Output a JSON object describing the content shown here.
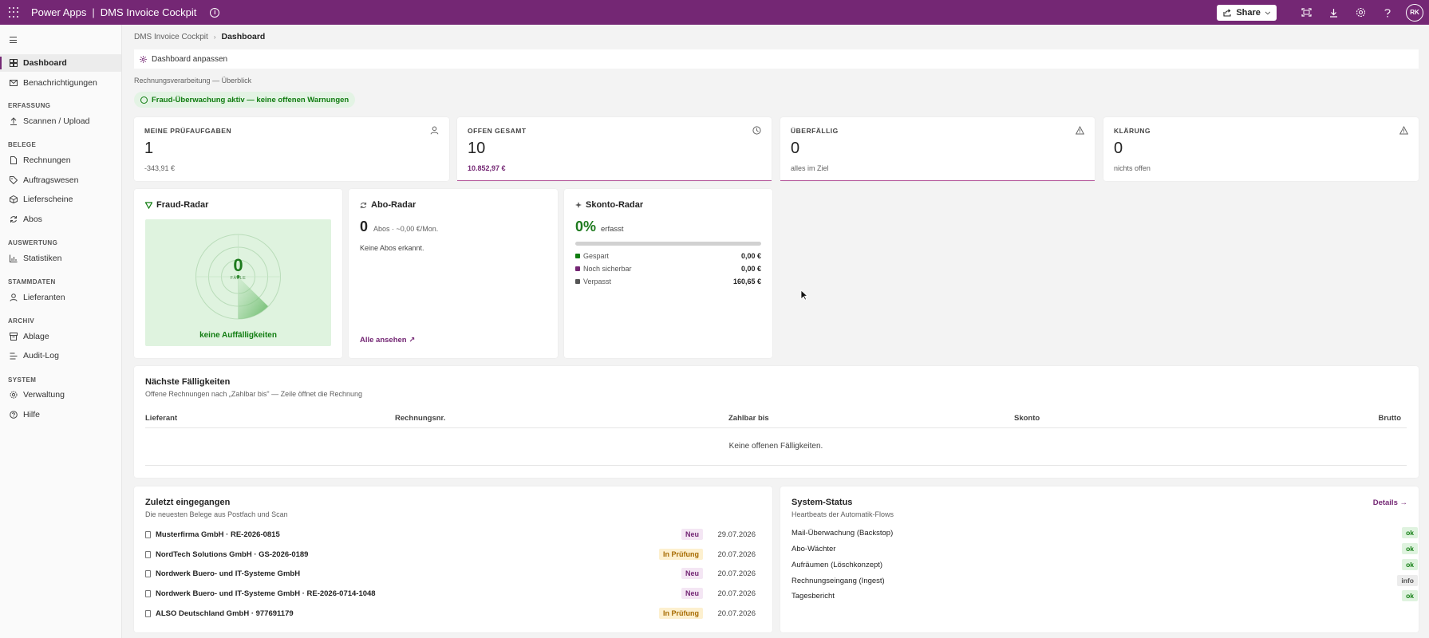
{
  "topbar": {
    "brand": "Power Apps",
    "separator": "|",
    "app_name": "DMS Invoice Cockpit",
    "share_label": "Share",
    "avatar_initials": "RK"
  },
  "sidebar": {
    "items": [
      {
        "label": "Dashboard",
        "icon": "dashboard-icon"
      },
      {
        "label": "Benachrichtigungen",
        "icon": "mail-icon"
      },
      {
        "label": "Scannen / Upload",
        "icon": "upload-icon"
      },
      {
        "label": "Rechnungen",
        "icon": "document-icon"
      },
      {
        "label": "Auftragswesen",
        "icon": "tag-icon"
      },
      {
        "label": "Lieferscheine",
        "icon": "box-icon"
      },
      {
        "label": "Abos",
        "icon": "refresh-icon"
      },
      {
        "label": "Statistiken",
        "icon": "chart-icon"
      },
      {
        "label": "Lieferanten",
        "icon": "person-icon"
      },
      {
        "label": "Ablage",
        "icon": "archive-icon"
      },
      {
        "label": "Audit-Log",
        "icon": "list-icon"
      },
      {
        "label": "Verwaltung",
        "icon": "gear-icon"
      },
      {
        "label": "Hilfe",
        "icon": "help-icon"
      }
    ],
    "sections": [
      "ERFASSUNG",
      "BELEGE",
      "AUSWERTUNG",
      "STAMMDATEN",
      "ARCHIV",
      "SYSTEM"
    ]
  },
  "breadcrumb": {
    "root": "DMS Invoice Cockpit",
    "current": "Dashboard"
  },
  "customize_label": "Dashboard anpassen",
  "subtitle": "Rechnungsverarbeitung — Überblick",
  "fraud_status": "Fraud-Überwachung aktiv — keine offenen Warnungen",
  "kpis": [
    {
      "label": "MEINE PRÜFAUFGABEN",
      "value": "1",
      "sub": "-343,91 €"
    },
    {
      "label": "OFFEN GESAMT",
      "value": "10",
      "sub": "10.852,97 €"
    },
    {
      "label": "ÜBERFÄLLIG",
      "value": "0",
      "sub": "alles im Ziel"
    },
    {
      "label": "KLÄRUNG",
      "value": "0",
      "sub": "nichts offen"
    }
  ],
  "fraud_radar": {
    "title": "Fraud-Radar",
    "count": "0",
    "count_label": "FÄLLE",
    "status": "keine Auffälligkeiten"
  },
  "abo_radar": {
    "title": "Abo-Radar",
    "count": "0",
    "unit": "Abos · ~0,00 €/Mon.",
    "empty": "Keine Abos erkannt.",
    "link": "Alle ansehen ↗"
  },
  "skonto_radar": {
    "title": "Skonto-Radar",
    "percent": "0%",
    "unit": "erfasst",
    "progress": 0,
    "rows": [
      {
        "label": "Gespart",
        "value": "0,00 €",
        "color": "#107c10"
      },
      {
        "label": "Noch sicherbar",
        "value": "0,00 €",
        "color": "#742774"
      },
      {
        "label": "Verpasst",
        "value": "160,65 €",
        "color": "#555555"
      }
    ]
  },
  "due": {
    "title": "Nächste Fälligkeiten",
    "subtitle": "Offene Rechnungen nach „Zahlbar bis\" — Zeile öffnet die Rechnung",
    "columns": [
      "Lieferant",
      "Rechnungsnr.",
      "Zahlbar bis",
      "Skonto",
      "Brutto"
    ],
    "empty": "Keine offenen Fälligkeiten."
  },
  "recent": {
    "title": "Zuletzt eingegangen",
    "subtitle": "Die neuesten Belege aus Postfach und Scan",
    "rows": [
      {
        "name": "Musterfirma GmbH · RE-2026-0815",
        "status": "Neu",
        "date": "29.07.2026"
      },
      {
        "name": "NordTech Solutions GmbH · GS-2026-0189",
        "status": "In Prüfung",
        "date": "20.07.2026"
      },
      {
        "name": "Nordwerk Buero- und IT-Systeme GmbH",
        "status": "Neu",
        "date": "20.07.2026"
      },
      {
        "name": "Nordwerk Buero- und IT-Systeme GmbH · RE-2026-0714-1048",
        "status": "Neu",
        "date": "20.07.2026"
      },
      {
        "name": "ALSO Deutschland GmbH · 977691179",
        "status": "In Prüfung",
        "date": "20.07.2026"
      }
    ]
  },
  "system_status": {
    "title": "System-Status",
    "subtitle": "Heartbeats der Automatik-Flows",
    "details_link": "Details →",
    "rows": [
      {
        "name": "Mail-Überwachung (Backstop)",
        "status": "ok"
      },
      {
        "name": "Abo-Wächter",
        "status": "ok"
      },
      {
        "name": "Aufräumen (Löschkonzept)",
        "status": "ok"
      },
      {
        "name": "Rechnungseingang (Ingest)",
        "status": "info"
      },
      {
        "name": "Tagesbericht",
        "status": "ok"
      }
    ]
  },
  "colors": {
    "brand": "#742774",
    "success": "#107c10",
    "warning": "#a66a00"
  }
}
